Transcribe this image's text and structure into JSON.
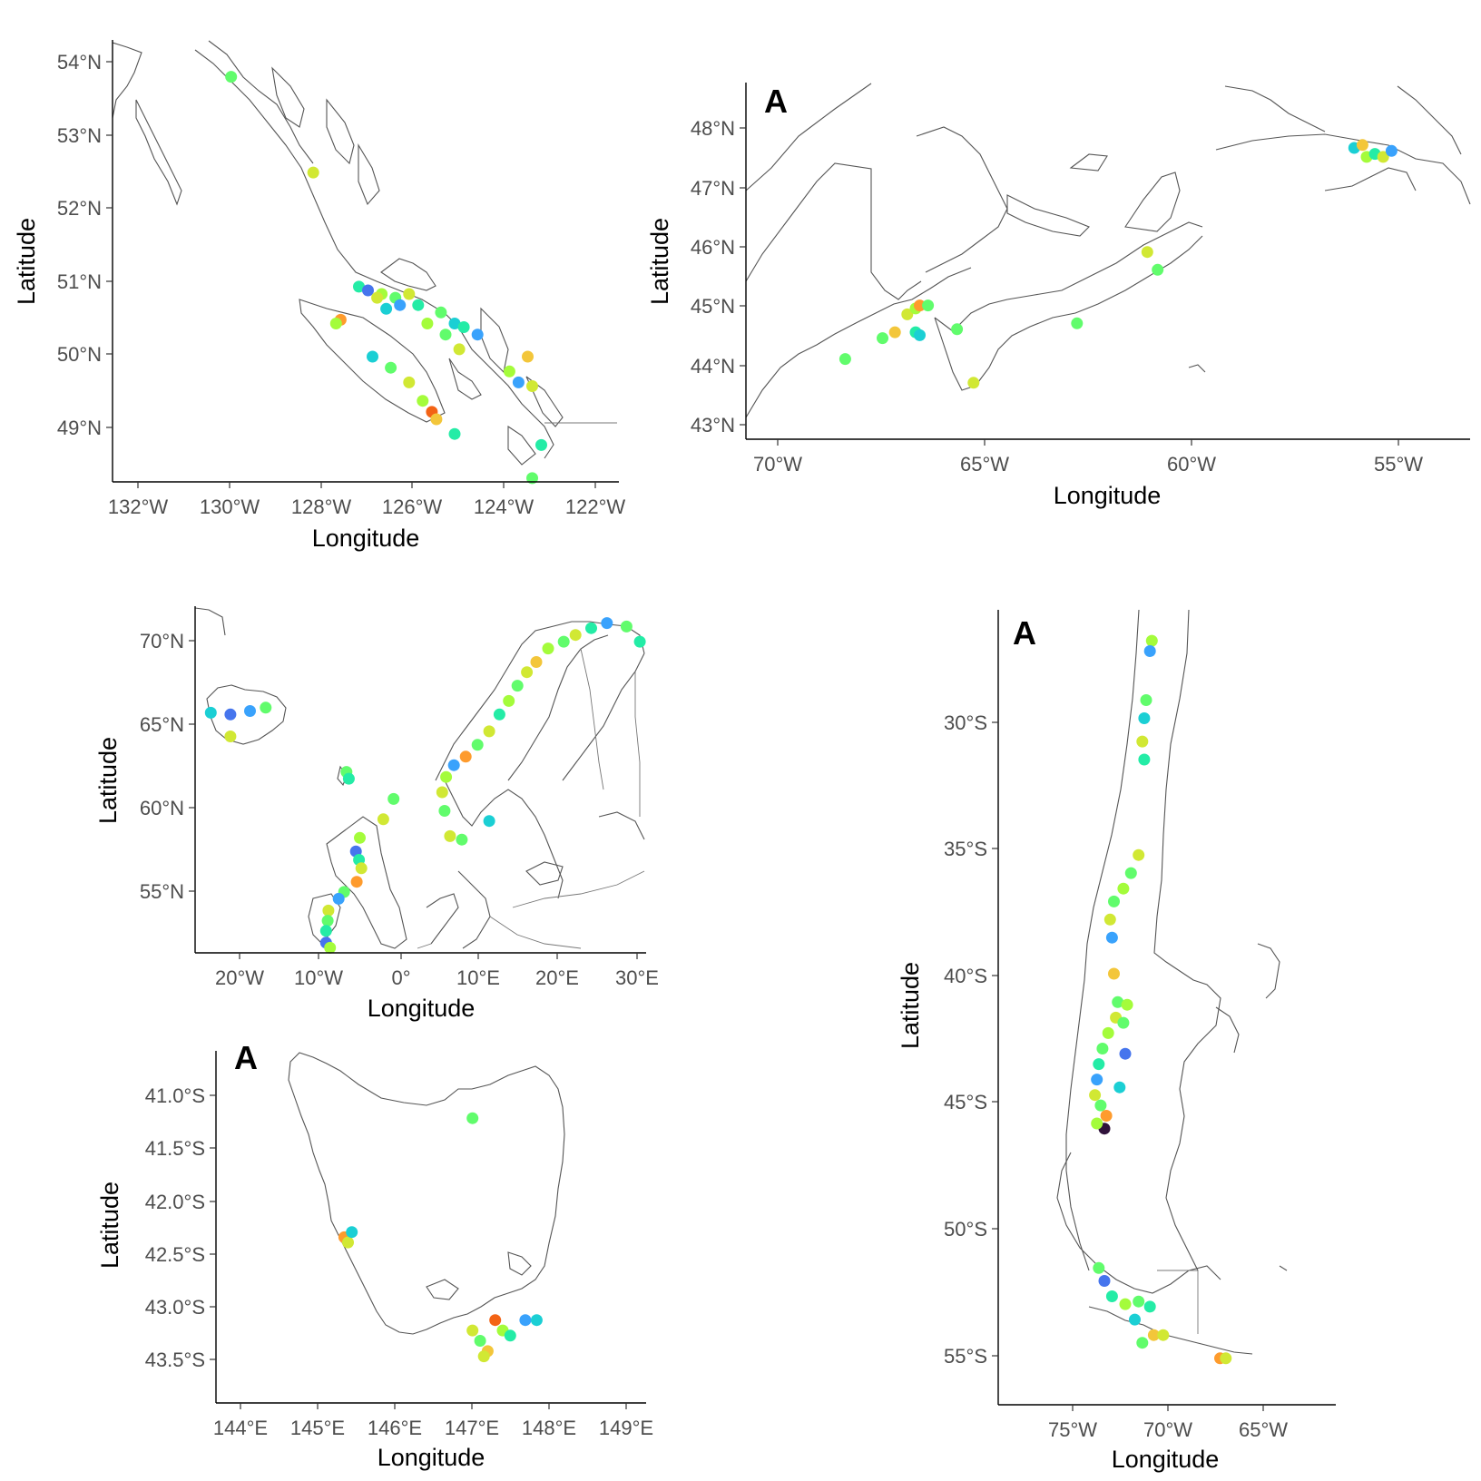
{
  "palette": [
    "#30123b",
    "#4145ab",
    "#4675ed",
    "#39a2fc",
    "#1bcfd4",
    "#24eca6",
    "#61fc6c",
    "#a4fc3b",
    "#d1e834",
    "#f3c63a",
    "#fe9b2d",
    "#f36315",
    "#d93806"
  ],
  "maps": [
    {
      "id": "british-columbia",
      "panel_tag": "",
      "xlabel": "Longitude",
      "ylabel": "Latitude",
      "x_ticks": [
        "132°W",
        "130°W",
        "128°W",
        "126°W",
        "124°W",
        "122°W"
      ],
      "y_ticks": [
        "54°N",
        "53°N",
        "52°N",
        "51°N",
        "50°N",
        "49°N"
      ],
      "lon_range": [
        -132.8,
        -121.7
      ],
      "lat_range": [
        48.3,
        54.3
      ],
      "points": [
        [
          -130.2,
          53.8,
          6
        ],
        [
          -128.4,
          52.5,
          8
        ],
        [
          -127.4,
          50.95,
          5
        ],
        [
          -127.2,
          50.9,
          2
        ],
        [
          -126.9,
          50.85,
          7
        ],
        [
          -126.6,
          50.8,
          6
        ],
        [
          -126.3,
          50.85,
          8
        ],
        [
          -126.5,
          50.7,
          3
        ],
        [
          -126.8,
          50.65,
          4
        ],
        [
          -126.1,
          50.7,
          5
        ],
        [
          -127.8,
          50.5,
          10
        ],
        [
          -127.9,
          50.45,
          7
        ],
        [
          -125.6,
          50.6,
          6
        ],
        [
          -125.3,
          50.45,
          4
        ],
        [
          -125.1,
          50.4,
          5
        ],
        [
          -124.8,
          50.3,
          3
        ],
        [
          -125.2,
          50.1,
          8
        ],
        [
          -127.1,
          50.0,
          4
        ],
        [
          -126.7,
          49.85,
          6
        ],
        [
          -126.3,
          49.65,
          8
        ],
        [
          -126.0,
          49.4,
          7
        ],
        [
          -125.8,
          49.25,
          11
        ],
        [
          -125.7,
          49.15,
          9
        ],
        [
          -125.3,
          48.95,
          5
        ],
        [
          -124.1,
          49.8,
          7
        ],
        [
          -123.9,
          49.65,
          3
        ],
        [
          -123.6,
          49.6,
          8
        ],
        [
          -123.7,
          50.0,
          9
        ],
        [
          -123.4,
          48.8,
          5
        ],
        [
          -123.6,
          48.35,
          6
        ],
        [
          -125.9,
          50.45,
          7
        ],
        [
          -127.0,
          50.8,
          8
        ],
        [
          -125.5,
          50.3,
          6
        ]
      ]
    },
    {
      "id": "atlantic-canada",
      "panel_tag": "A",
      "xlabel": "Longitude",
      "ylabel": "Latitude",
      "x_ticks": [
        "70°W",
        "65°W",
        "60°W",
        "55°W"
      ],
      "y_ticks": [
        "48°N",
        "47°N",
        "46°N",
        "45°N",
        "44°N",
        "43°N"
      ],
      "lon_range": [
        -70.8,
        -53.3
      ],
      "lat_range": [
        42.8,
        48.8
      ],
      "points": [
        [
          -68.4,
          44.15,
          6
        ],
        [
          -67.5,
          44.5,
          6
        ],
        [
          -67.2,
          44.6,
          9
        ],
        [
          -66.9,
          44.9,
          8
        ],
        [
          -66.7,
          45.0,
          7
        ],
        [
          -66.6,
          45.05,
          10
        ],
        [
          -66.4,
          45.05,
          6
        ],
        [
          -66.7,
          44.6,
          5
        ],
        [
          -66.6,
          44.55,
          4
        ],
        [
          -65.7,
          44.65,
          6
        ],
        [
          -65.3,
          43.75,
          8
        ],
        [
          -62.8,
          44.75,
          6
        ],
        [
          -61.1,
          45.95,
          8
        ],
        [
          -60.85,
          45.65,
          6
        ],
        [
          -56.1,
          47.7,
          4
        ],
        [
          -55.9,
          47.75,
          9
        ],
        [
          -55.8,
          47.55,
          7
        ],
        [
          -55.6,
          47.6,
          5
        ],
        [
          -55.4,
          47.55,
          8
        ],
        [
          -55.2,
          47.65,
          3
        ]
      ]
    },
    {
      "id": "northern-europe",
      "panel_tag": "",
      "xlabel": "Longitude",
      "ylabel": "Latitude",
      "x_ticks": [
        "20°W",
        "10°W",
        "0°",
        "10°E",
        "20°E",
        "30°E"
      ],
      "y_ticks": [
        "70°N",
        "65°N",
        "60°N",
        "55°N"
      ],
      "lon_range": [
        -26.5,
        31.0
      ],
      "lat_range": [
        51.4,
        71.9
      ],
      "points": [
        [
          -24.5,
          65.6,
          4
        ],
        [
          -22.0,
          65.5,
          2
        ],
        [
          -19.5,
          65.7,
          3
        ],
        [
          -17.5,
          65.9,
          6
        ],
        [
          -22.0,
          64.2,
          8
        ],
        [
          -7.2,
          62.1,
          6
        ],
        [
          -6.9,
          61.7,
          5
        ],
        [
          -1.2,
          60.5,
          6
        ],
        [
          -2.5,
          59.3,
          8
        ],
        [
          -5.5,
          58.2,
          7
        ],
        [
          -6.0,
          57.4,
          2
        ],
        [
          -5.6,
          56.9,
          5
        ],
        [
          -5.3,
          56.4,
          8
        ],
        [
          -5.9,
          55.6,
          10
        ],
        [
          -7.5,
          55.0,
          6
        ],
        [
          -8.2,
          54.6,
          3
        ],
        [
          -9.5,
          53.9,
          8
        ],
        [
          -9.6,
          53.3,
          6
        ],
        [
          -9.8,
          52.7,
          5
        ],
        [
          -9.8,
          52.0,
          2
        ],
        [
          -9.3,
          51.7,
          7
        ],
        [
          5.3,
          59.8,
          6
        ],
        [
          5.0,
          60.9,
          8
        ],
        [
          5.5,
          61.8,
          7
        ],
        [
          6.5,
          62.5,
          3
        ],
        [
          8.0,
          63.0,
          10
        ],
        [
          9.5,
          63.7,
          6
        ],
        [
          11.0,
          64.5,
          8
        ],
        [
          12.3,
          65.5,
          5
        ],
        [
          13.5,
          66.3,
          7
        ],
        [
          14.6,
          67.2,
          6
        ],
        [
          15.8,
          68.0,
          8
        ],
        [
          17.0,
          68.6,
          9
        ],
        [
          18.5,
          69.4,
          7
        ],
        [
          20.5,
          69.8,
          6
        ],
        [
          22.0,
          70.2,
          8
        ],
        [
          24.0,
          70.6,
          5
        ],
        [
          26.0,
          70.9,
          3
        ],
        [
          28.5,
          70.7,
          6
        ],
        [
          30.2,
          69.8,
          5
        ],
        [
          6.0,
          58.3,
          8
        ],
        [
          7.5,
          58.1,
          6
        ],
        [
          11.0,
          59.2,
          4
        ]
      ]
    },
    {
      "id": "tasmania",
      "panel_tag": "A",
      "xlabel": "Longitude",
      "ylabel": "Latitude",
      "x_ticks": [
        "144°E",
        "145°E",
        "146°E",
        "147°E",
        "148°E",
        "149°E"
      ],
      "y_ticks": [
        "41.0°S",
        "41.5°S",
        "42.0°S",
        "42.5°S",
        "43.0°S",
        "43.5°S"
      ],
      "lon_range": [
        143.6,
        149.3
      ],
      "lat_range": [
        -43.9,
        -40.5
      ],
      "points": [
        [
          147.0,
          -41.15,
          6
        ],
        [
          145.3,
          -42.3,
          10
        ],
        [
          145.35,
          -42.35,
          8
        ],
        [
          145.4,
          -42.25,
          4
        ],
        [
          147.0,
          -43.2,
          8
        ],
        [
          147.1,
          -43.3,
          6
        ],
        [
          147.2,
          -43.4,
          9
        ],
        [
          147.3,
          -43.1,
          11
        ],
        [
          147.4,
          -43.2,
          7
        ],
        [
          147.5,
          -43.25,
          5
        ],
        [
          147.7,
          -43.1,
          3
        ],
        [
          147.85,
          -43.1,
          4
        ],
        [
          147.15,
          -43.45,
          8
        ]
      ]
    },
    {
      "id": "chile-patagonia",
      "panel_tag": "A",
      "xlabel": "Longitude",
      "ylabel": "Latitude",
      "x_ticks": [
        "75°W",
        "70°W",
        "65°W"
      ],
      "y_ticks": [
        "30°S",
        "35°S",
        "40°S",
        "45°S",
        "50°S",
        "55°S"
      ],
      "lon_range": [
        -79.2,
        -61.4
      ],
      "lat_range": [
        -56.8,
        -26.0
      ],
      "points": [
        [
          -71.1,
          -27.2,
          7
        ],
        [
          -71.2,
          -27.6,
          3
        ],
        [
          -71.4,
          -29.5,
          6
        ],
        [
          -71.5,
          -30.2,
          4
        ],
        [
          -71.6,
          -31.1,
          8
        ],
        [
          -71.5,
          -31.8,
          5
        ],
        [
          -71.8,
          -35.5,
          8
        ],
        [
          -72.2,
          -36.2,
          6
        ],
        [
          -72.6,
          -36.8,
          7
        ],
        [
          -73.1,
          -37.3,
          6
        ],
        [
          -73.3,
          -38.0,
          8
        ],
        [
          -73.2,
          -38.7,
          3
        ],
        [
          -73.1,
          -40.1,
          9
        ],
        [
          -72.9,
          -41.2,
          6
        ],
        [
          -73.0,
          -41.8,
          8
        ],
        [
          -73.4,
          -42.4,
          7
        ],
        [
          -73.7,
          -43.0,
          6
        ],
        [
          -73.9,
          -43.6,
          5
        ],
        [
          -74.0,
          -44.2,
          3
        ],
        [
          -74.1,
          -44.8,
          8
        ],
        [
          -73.8,
          -45.2,
          6
        ],
        [
          -73.5,
          -45.6,
          10
        ],
        [
          -73.6,
          -46.1,
          0
        ],
        [
          -74.0,
          -45.9,
          7
        ],
        [
          -72.8,
          -44.5,
          4
        ],
        [
          -72.6,
          -42.0,
          6
        ],
        [
          -72.4,
          -41.3,
          7
        ],
        [
          -72.5,
          -43.2,
          2
        ],
        [
          -73.9,
          -51.5,
          6
        ],
        [
          -73.6,
          -52.0,
          2
        ],
        [
          -73.2,
          -52.6,
          5
        ],
        [
          -72.5,
          -52.9,
          7
        ],
        [
          -71.8,
          -52.8,
          6
        ],
        [
          -71.2,
          -53.0,
          5
        ],
        [
          -72.0,
          -53.5,
          4
        ],
        [
          -71.0,
          -54.1,
          9
        ],
        [
          -70.5,
          -54.1,
          8
        ],
        [
          -71.6,
          -54.4,
          6
        ],
        [
          -67.5,
          -55.0,
          10
        ],
        [
          -67.2,
          -55.0,
          8
        ]
      ]
    }
  ]
}
